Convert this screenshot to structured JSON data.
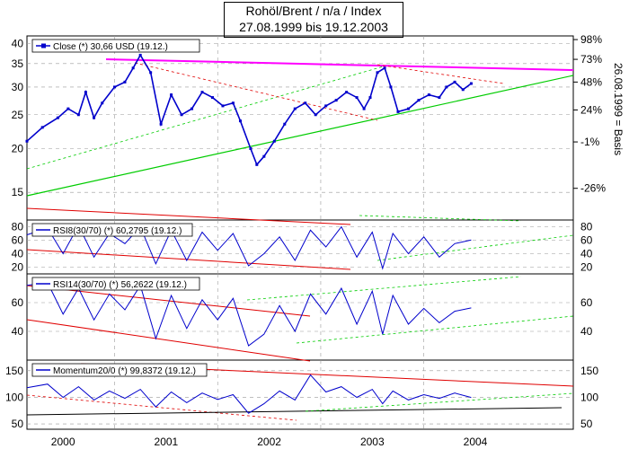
{
  "header": {
    "title_line1": "Rohöl/Brent / n/a / Index",
    "title_line2": "27.08.1999 bis 19.12.2003"
  },
  "colors": {
    "price": "#0000cc",
    "support": "#00cc00",
    "resistance": "#ff00ff",
    "trend_red": "#e00000",
    "grid": "#999999"
  },
  "chart_data": [
    {
      "type": "line",
      "panel": "price",
      "legend": "Close (*) 30,66 USD (19.12.)",
      "y_scale": "log",
      "ylim": [
        12.5,
        42
      ],
      "y_ticks": [
        15,
        20,
        25,
        30,
        35,
        40
      ],
      "right_ticks": [
        "98%",
        "73%",
        "48%",
        "24%",
        "-1%",
        "-26%"
      ],
      "right_axis_label": "26.08.1999 = Basis",
      "x_ticks": [
        "2000",
        "2001",
        "2002",
        "2003",
        "2004"
      ],
      "series": [
        {
          "name": "Close",
          "x": [
            1999.65,
            1999.8,
            1999.95,
            2000.05,
            2000.15,
            2000.22,
            2000.3,
            2000.38,
            2000.5,
            2000.6,
            2000.68,
            2000.75,
            2000.85,
            2000.95,
            2001.05,
            2001.15,
            2001.25,
            2001.35,
            2001.45,
            2001.55,
            2001.65,
            2001.72,
            2001.82,
            2001.88,
            2001.95,
            2002.05,
            2002.15,
            2002.25,
            2002.35,
            2002.45,
            2002.55,
            2002.65,
            2002.75,
            2002.85,
            2002.92,
            2002.98,
            2003.05,
            2003.12,
            2003.18,
            2003.25,
            2003.35,
            2003.45,
            2003.55,
            2003.65,
            2003.72,
            2003.8,
            2003.88,
            2003.96
          ],
          "y": [
            21,
            23,
            24.5,
            26,
            25,
            29,
            24.5,
            27,
            30,
            31,
            34,
            37,
            33,
            23.5,
            28.5,
            25,
            26,
            29,
            28,
            26.5,
            27,
            24,
            20,
            18,
            19,
            21,
            23.5,
            26,
            27,
            25,
            26.5,
            27.5,
            29,
            28,
            26,
            28,
            33,
            34,
            30,
            25.5,
            26,
            27.5,
            28.5,
            28,
            30,
            31,
            29.5,
            30.7
          ]
        }
      ]
    },
    {
      "type": "line",
      "panel": "rsi8",
      "legend": "RSI8(30/70) (*) 60,2795 (19.12.)",
      "y_ticks": [
        20,
        40,
        60,
        80
      ],
      "ylim": [
        10,
        90
      ],
      "series": [
        {
          "name": "RSI8",
          "x": [
            1999.65,
            1999.85,
            2000.0,
            2000.15,
            2000.3,
            2000.45,
            2000.6,
            2000.75,
            2000.9,
            2001.05,
            2001.2,
            2001.35,
            2001.5,
            2001.65,
            2001.8,
            2001.95,
            2002.1,
            2002.25,
            2002.4,
            2002.55,
            2002.7,
            2002.85,
            2003.0,
            2003.1,
            2003.2,
            2003.35,
            2003.5,
            2003.65,
            2003.8,
            2003.96
          ],
          "y": [
            68,
            78,
            40,
            82,
            35,
            70,
            55,
            80,
            25,
            75,
            30,
            72,
            45,
            70,
            22,
            40,
            65,
            30,
            75,
            50,
            80,
            35,
            72,
            18,
            70,
            40,
            65,
            35,
            55,
            60.3
          ]
        }
      ]
    },
    {
      "type": "line",
      "panel": "rsi14",
      "legend": "RSI14(30/70) (*) 56,2622 (19.12.)",
      "y_ticks": [
        40,
        60
      ],
      "ylim": [
        20,
        80
      ],
      "series": [
        {
          "name": "RSI14",
          "x": [
            1999.65,
            1999.85,
            2000.0,
            2000.15,
            2000.3,
            2000.45,
            2000.6,
            2000.75,
            2000.9,
            2001.05,
            2001.2,
            2001.35,
            2001.5,
            2001.65,
            2001.8,
            2001.95,
            2002.1,
            2002.25,
            2002.4,
            2002.55,
            2002.7,
            2002.85,
            2003.0,
            2003.1,
            2003.2,
            2003.35,
            2003.5,
            2003.65,
            2003.8,
            2003.96
          ],
          "y": [
            72,
            74,
            52,
            70,
            48,
            66,
            55,
            72,
            35,
            65,
            42,
            62,
            48,
            63,
            30,
            38,
            58,
            40,
            66,
            52,
            70,
            45,
            68,
            38,
            65,
            45,
            56,
            46,
            54,
            56.3
          ]
        }
      ]
    },
    {
      "type": "line",
      "panel": "momentum",
      "legend": "Momentum20/0 (*) 99,8372 (19.12.)",
      "y_ticks": [
        50,
        100,
        150
      ],
      "ylim": [
        40,
        170
      ],
      "series": [
        {
          "name": "Momentum",
          "x": [
            1999.65,
            1999.85,
            2000.0,
            2000.15,
            2000.3,
            2000.45,
            2000.6,
            2000.75,
            2000.9,
            2001.05,
            2001.2,
            2001.35,
            2001.5,
            2001.65,
            2001.8,
            2001.95,
            2002.1,
            2002.25,
            2002.4,
            2002.55,
            2002.7,
            2002.85,
            2003.0,
            2003.1,
            2003.2,
            2003.35,
            2003.5,
            2003.65,
            2003.8,
            2003.96
          ],
          "y": [
            118,
            125,
            100,
            120,
            95,
            112,
            98,
            115,
            82,
            110,
            90,
            108,
            96,
            105,
            70,
            88,
            112,
            95,
            142,
            110,
            120,
            100,
            115,
            88,
            112,
            95,
            105,
            98,
            108,
            99.8
          ]
        }
      ]
    }
  ]
}
